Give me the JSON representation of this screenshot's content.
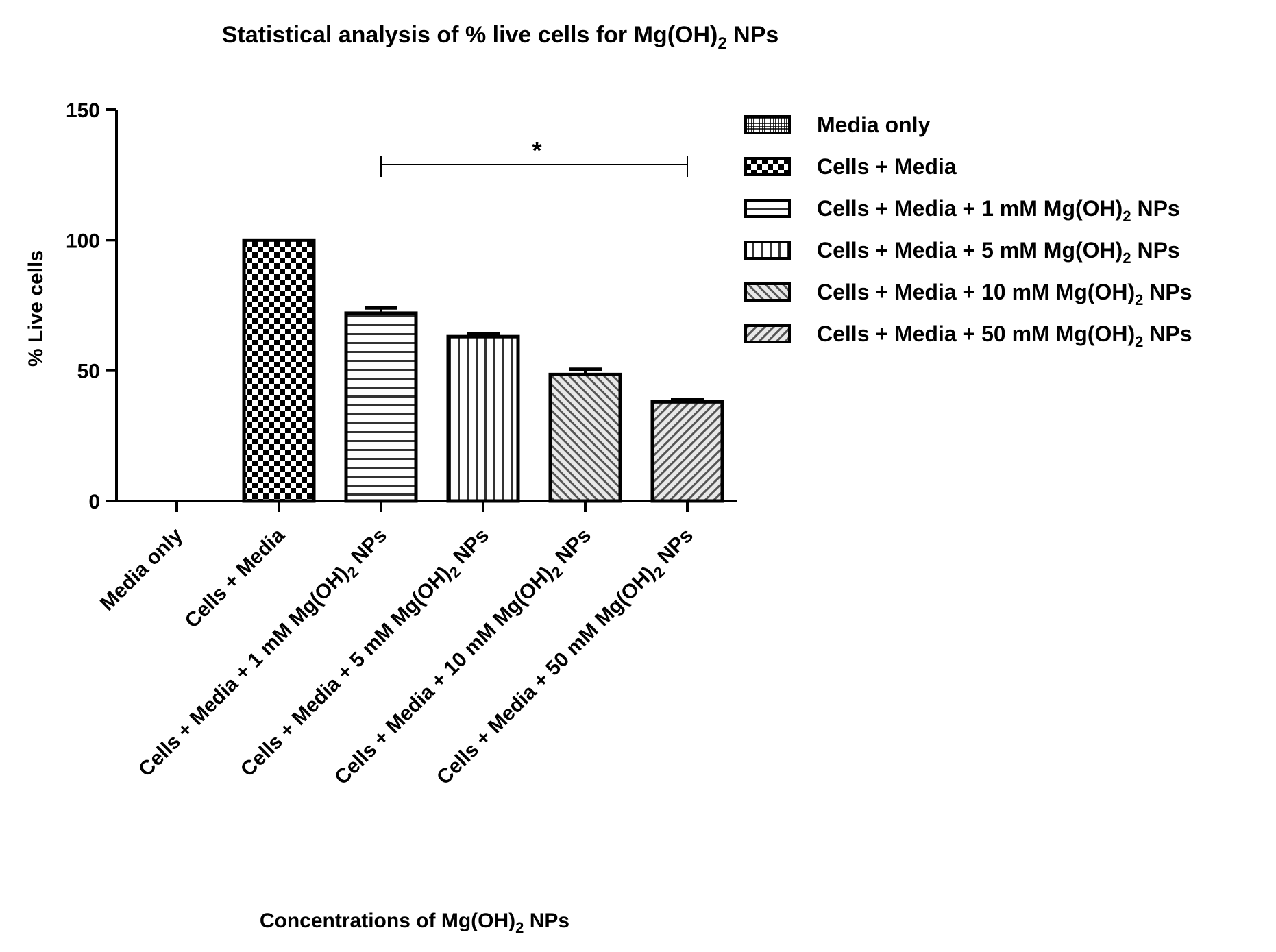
{
  "chart_data": {
    "type": "bar",
    "title": "Statistical analysis of % live cells for Mg(OH)₂ NPs",
    "xlabel": "Concentrations of Mg(OH)₂ NPs",
    "ylabel": "% Live cells",
    "ylim": [
      0,
      150
    ],
    "yticks": [
      0,
      50,
      100,
      150
    ],
    "categories": [
      "Media only",
      "Cells + Media",
      "Cells + Media + 1 mM Mg(OH)₂ NPs",
      "Cells + Media + 5 mM Mg(OH)₂ NPs",
      "Cells + Media + 10 mM Mg(OH)₂ NPs",
      "Cells + Media + 50 mM Mg(OH)₂ NPs"
    ],
    "values": [
      0,
      100,
      72,
      63,
      48.5,
      38
    ],
    "errors": [
      0,
      0,
      2,
      1,
      2,
      1
    ],
    "patterns": [
      "grid",
      "checker",
      "hlines",
      "vlines",
      "diag",
      "diag2"
    ],
    "legend": {
      "position": "right",
      "entries": [
        "Media only",
        "Cells + Media",
        "Cells + Media + 1 mM Mg(OH)₂ NPs",
        "Cells + Media + 5 mM Mg(OH)₂ NPs",
        "Cells + Media + 10 mM Mg(OH)₂ NPs",
        "Cells + Media + 50 mM Mg(OH)₂ NPs"
      ]
    },
    "significance": {
      "label": "*",
      "from_category": 2,
      "to_category": 5
    }
  }
}
